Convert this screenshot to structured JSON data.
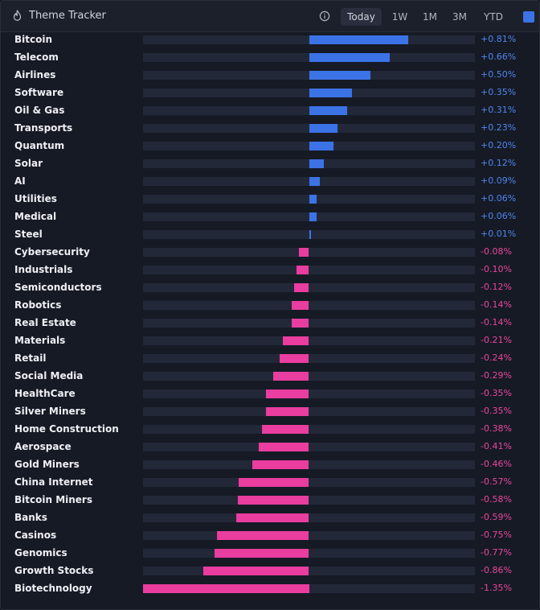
{
  "header": {
    "title": "Theme Tracker",
    "tabs": [
      "Today",
      "1W",
      "1M",
      "3M",
      "YTD"
    ],
    "active_tab": "Today"
  },
  "colors": {
    "positive": "#3b73e6",
    "negative": "#e93d9f",
    "positive_text": "#4f86ee",
    "negative_text": "#e8479f"
  },
  "chart_data": {
    "type": "bar",
    "orientation": "horizontal",
    "title": "Theme Tracker",
    "unit": "%",
    "xlim": [
      -1.35,
      1.35
    ],
    "categories": [
      "Bitcoin",
      "Telecom",
      "Airlines",
      "Software",
      "Oil & Gas",
      "Transports",
      "Quantum",
      "Solar",
      "AI",
      "Utilities",
      "Medical",
      "Steel",
      "Cybersecurity",
      "Industrials",
      "Semiconductors",
      "Robotics",
      "Real Estate",
      "Materials",
      "Retail",
      "Social Media",
      "HealthCare",
      "Silver Miners",
      "Home Construction",
      "Aerospace",
      "Gold Miners",
      "China Internet",
      "Bitcoin Miners",
      "Banks",
      "Casinos",
      "Genomics",
      "Growth Stocks",
      "Biotechnology"
    ],
    "values": [
      0.81,
      0.66,
      0.5,
      0.35,
      0.31,
      0.23,
      0.2,
      0.12,
      0.09,
      0.06,
      0.06,
      0.01,
      -0.08,
      -0.1,
      -0.12,
      -0.14,
      -0.14,
      -0.21,
      -0.24,
      -0.29,
      -0.35,
      -0.35,
      -0.38,
      -0.41,
      -0.46,
      -0.57,
      -0.58,
      -0.59,
      -0.75,
      -0.77,
      -0.86,
      -1.35
    ],
    "value_labels": [
      "+0.81%",
      "+0.66%",
      "+0.50%",
      "+0.35%",
      "+0.31%",
      "+0.23%",
      "+0.20%",
      "+0.12%",
      "+0.09%",
      "+0.06%",
      "+0.06%",
      "+0.01%",
      "-0.08%",
      "-0.10%",
      "-0.12%",
      "-0.14%",
      "-0.14%",
      "-0.21%",
      "-0.24%",
      "-0.29%",
      "-0.35%",
      "-0.35%",
      "-0.38%",
      "-0.41%",
      "-0.46%",
      "-0.57%",
      "-0.58%",
      "-0.59%",
      "-0.75%",
      "-0.77%",
      "-0.86%",
      "-1.35%"
    ]
  }
}
